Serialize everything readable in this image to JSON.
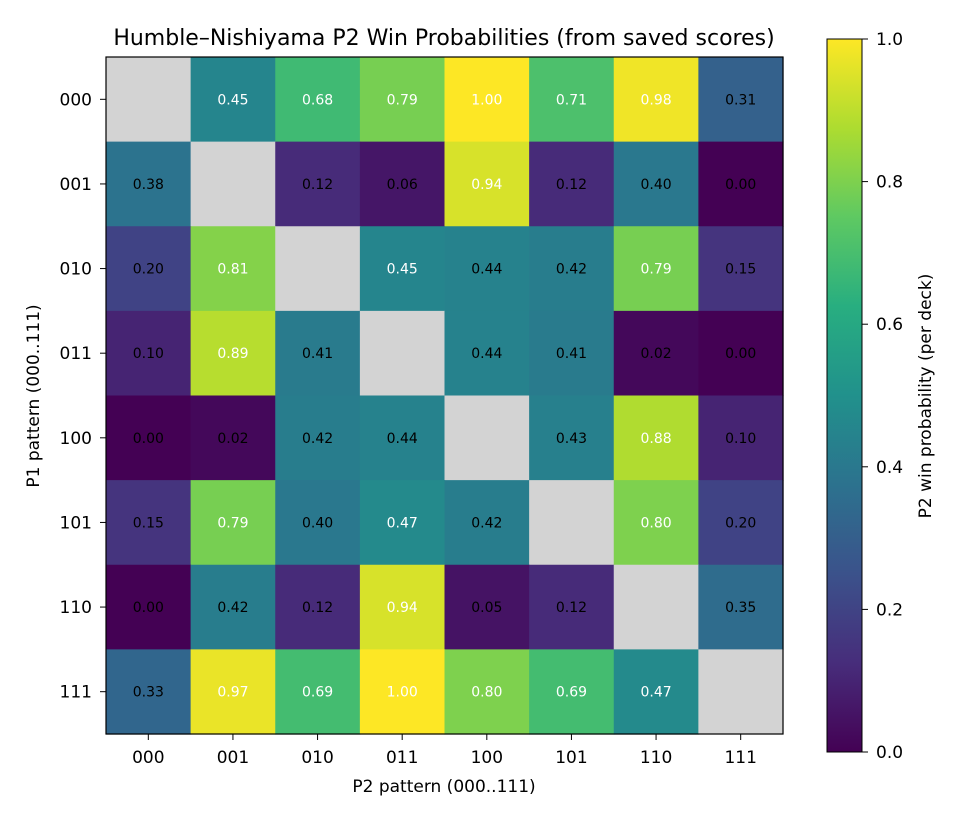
{
  "chart_data": {
    "type": "heatmap",
    "title": "Humble–Nishiyama P2 Win Probabilities (from saved scores)",
    "xlabel": "P2 pattern (000..111)",
    "ylabel": "P1 pattern (000..111)",
    "x_categories": [
      "000",
      "001",
      "010",
      "011",
      "100",
      "101",
      "110",
      "111"
    ],
    "y_categories": [
      "000",
      "001",
      "010",
      "011",
      "100",
      "101",
      "110",
      "111"
    ],
    "values": [
      [
        null,
        0.45,
        0.68,
        0.79,
        1.0,
        0.71,
        0.98,
        0.31
      ],
      [
        0.38,
        null,
        0.12,
        0.06,
        0.94,
        0.12,
        0.4,
        0.0
      ],
      [
        0.2,
        0.81,
        null,
        0.45,
        0.44,
        0.42,
        0.79,
        0.15
      ],
      [
        0.1,
        0.89,
        0.41,
        null,
        0.44,
        0.41,
        0.02,
        0.0
      ],
      [
        0.0,
        0.02,
        0.42,
        0.44,
        null,
        0.43,
        0.88,
        0.1
      ],
      [
        0.15,
        0.79,
        0.4,
        0.47,
        0.42,
        null,
        0.8,
        0.2
      ],
      [
        0.0,
        0.42,
        0.12,
        0.94,
        0.05,
        0.12,
        null,
        0.35
      ],
      [
        0.33,
        0.97,
        0.69,
        1.0,
        0.8,
        0.69,
        0.47,
        null
      ]
    ],
    "missing_color": "#d3d3d3",
    "colormap": "viridis",
    "colorbar": {
      "label": "P2 win probability (per deck)",
      "range": [
        0.0,
        1.0
      ],
      "ticks": [
        "0.0",
        "0.2",
        "0.4",
        "0.6",
        "0.8",
        "1.0"
      ]
    },
    "grid": false
  }
}
